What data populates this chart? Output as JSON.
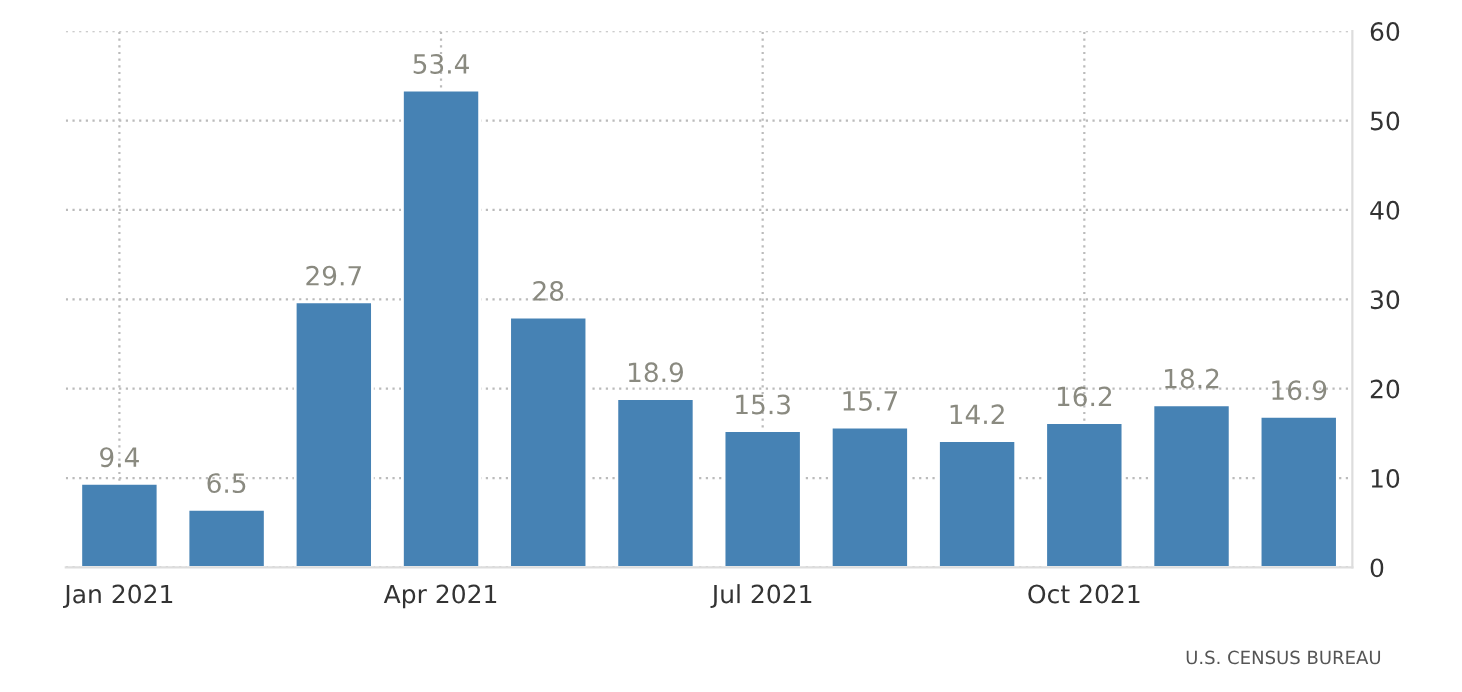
{
  "chart_data": {
    "type": "bar",
    "categories": [
      "Jan 2021",
      null,
      null,
      "Apr 2021",
      null,
      null,
      "Jul 2021",
      null,
      null,
      "Oct 2021",
      null,
      null
    ],
    "values": [
      9.4,
      6.5,
      29.7,
      53.4,
      28,
      18.9,
      15.3,
      15.7,
      14.2,
      16.2,
      18.2,
      16.9
    ],
    "color": "#4682b4",
    "ylim": [
      0,
      60
    ],
    "yticks": [
      0,
      10,
      20,
      30,
      40,
      50,
      60
    ],
    "grid": true,
    "data_labels": true,
    "annotations": [
      "U.S. CENSUS BUREAU"
    ]
  }
}
